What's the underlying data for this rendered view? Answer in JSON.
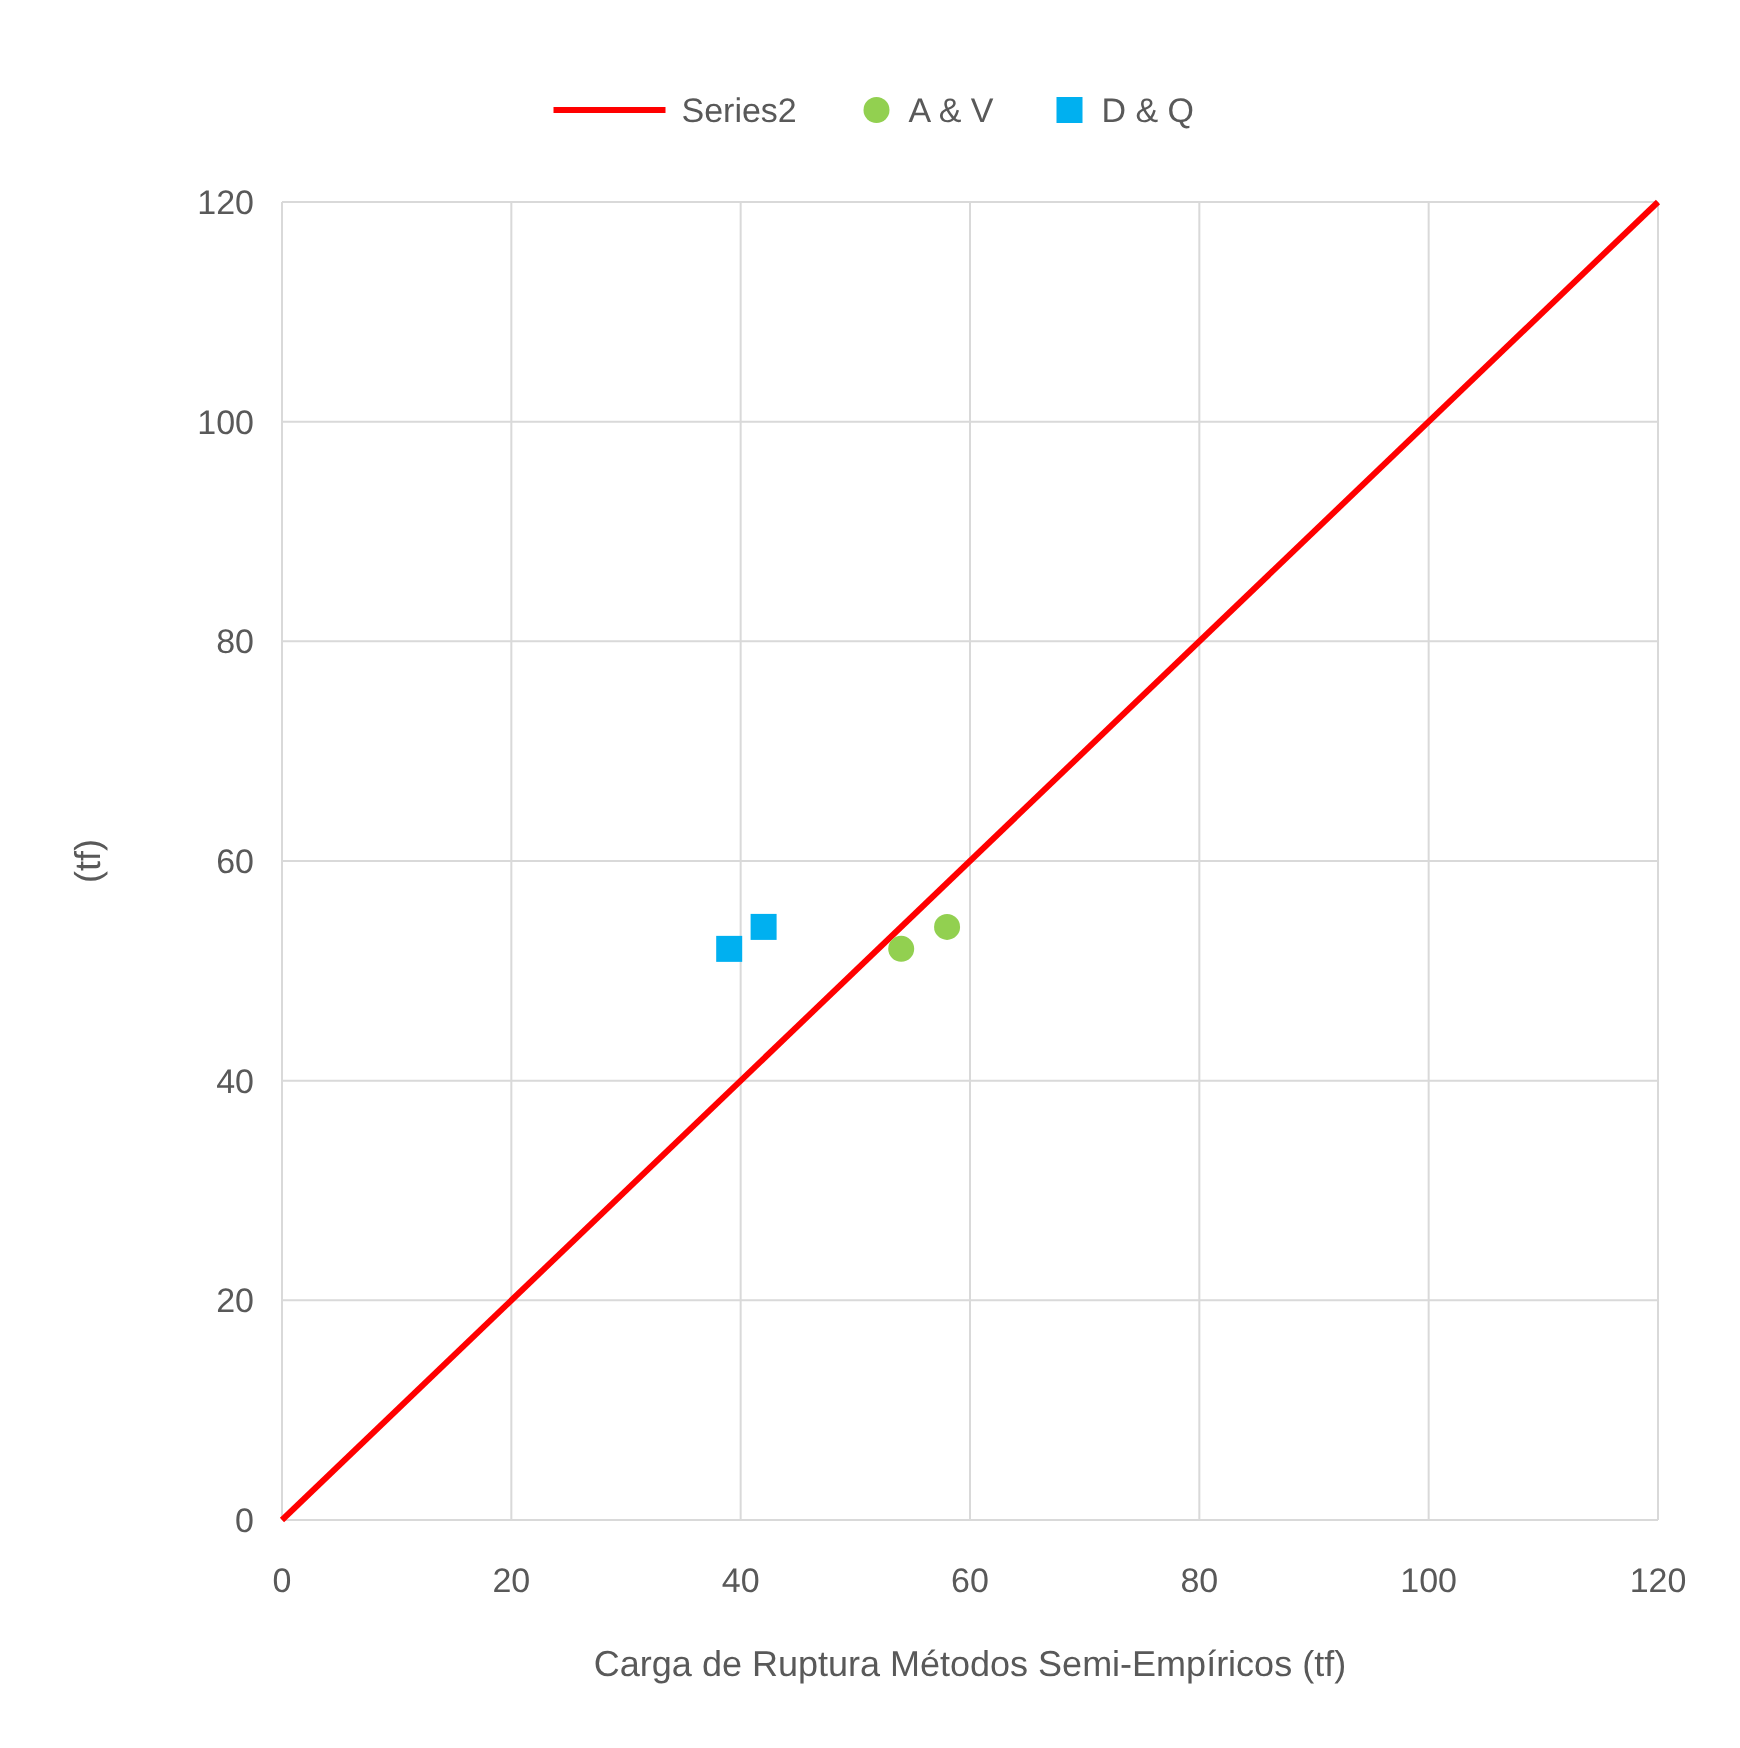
{
  "chart_data": {
    "type": "scatter",
    "xlabel": "Carga de Ruptura Métodos Semi-Empíricos (tf)",
    "ylabel": "(tf)",
    "xlim": [
      0,
      120
    ],
    "ylim": [
      0,
      120
    ],
    "xticks": [
      0,
      20,
      40,
      60,
      80,
      100,
      120
    ],
    "yticks": [
      0,
      20,
      40,
      60,
      80,
      100,
      120
    ],
    "grid": true,
    "legend": "top",
    "series": [
      {
        "name": "Series2",
        "type": "line",
        "color": "#ff0000",
        "x": [
          0,
          120
        ],
        "values": [
          0,
          120
        ],
        "marker": "none",
        "line_style": "solid"
      },
      {
        "name": "A & V",
        "type": "scatter",
        "color": "#92d050",
        "x": [
          54,
          58
        ],
        "values": [
          52,
          54
        ],
        "marker": "circle"
      },
      {
        "name": "D & Q",
        "type": "scatter",
        "color": "#00b0f0",
        "x": [
          39,
          42
        ],
        "values": [
          52,
          54
        ],
        "marker": "square"
      }
    ]
  }
}
